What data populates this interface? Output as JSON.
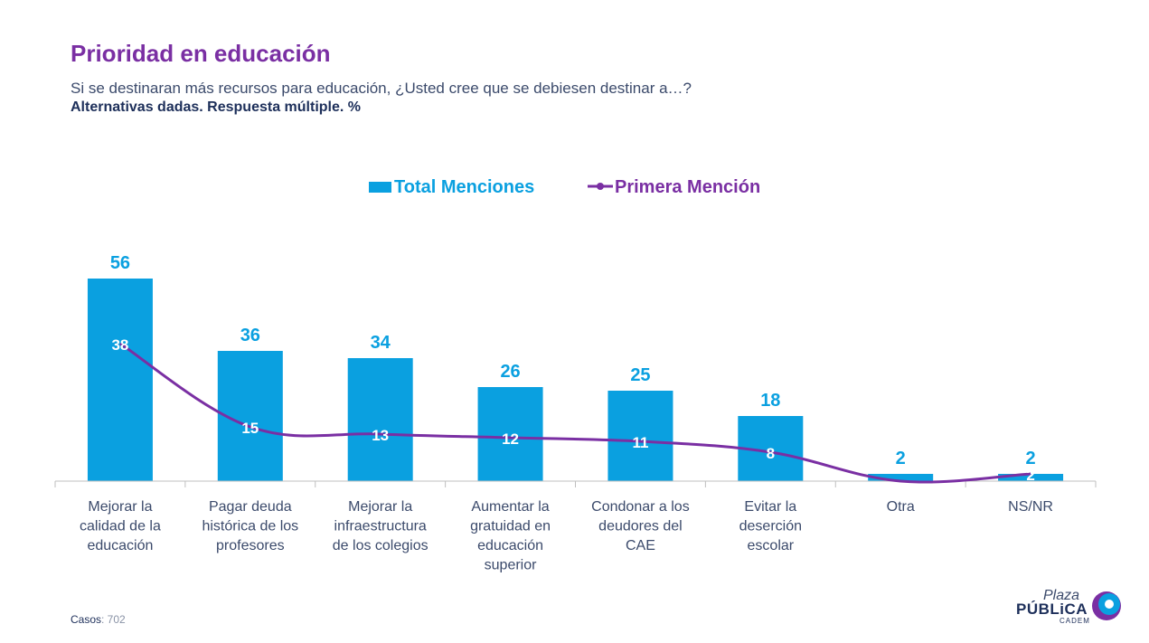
{
  "header": {
    "title": "Prioridad en educación",
    "question": "Si se destinaran más recursos para educación, ¿Usted cree que se debiesen destinar a…?",
    "note": "Alternativas dadas. Respuesta múltiple. %"
  },
  "footer": {
    "cases_label": "Casos",
    "cases_value": ": 702"
  },
  "logo": {
    "plaza": "Plaza",
    "publica": "PÚBLiCA",
    "cadem": "CADEM"
  },
  "colors": {
    "bar": "#0aa0e0",
    "line": "#7a2fa3",
    "title": "#7a2fa3",
    "axis_text": "#3b4a6b"
  },
  "chart_data": {
    "type": "bar",
    "categories": [
      [
        "Mejorar la",
        "calidad de la",
        "educación"
      ],
      [
        "Pagar deuda",
        "histórica de los",
        "profesores"
      ],
      [
        "Mejorar la",
        "infraestructura",
        "de los colegios"
      ],
      [
        "Aumentar la",
        "gratuidad en",
        "educación",
        "superior"
      ],
      [
        "Condonar a los",
        "deudores del",
        "CAE"
      ],
      [
        "Evitar la",
        "deserción",
        "escolar"
      ],
      [
        "Otra"
      ],
      [
        "NS/NR"
      ]
    ],
    "series": [
      {
        "name": "Total Menciones",
        "type": "bar",
        "values": [
          56,
          36,
          34,
          26,
          25,
          18,
          2,
          2
        ]
      },
      {
        "name": "Primera Mención",
        "type": "line",
        "values": [
          38,
          15,
          13,
          12,
          11,
          8,
          0,
          2
        ]
      }
    ],
    "ylim": [
      0,
      56
    ],
    "legend_position": "top-center",
    "grid": false
  }
}
